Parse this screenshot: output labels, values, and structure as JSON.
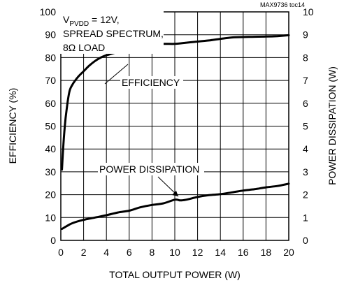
{
  "chart_data": {
    "type": "line",
    "ref_code": "MAX9736 toc14",
    "conditions": {
      "line1_prefix": "V",
      "line1_sub": "PVDD",
      "line1_suffix": " = 12V,",
      "line2": "SPREAD SPECTRUM,",
      "line3": "8Ω LOAD"
    },
    "xlabel": "TOTAL OUTPUT POWER (W)",
    "ylabel_left": "EFFICIENCY (%)",
    "ylabel_right": "POWER DISSIPATION (W)",
    "xlim": [
      0,
      20
    ],
    "ylim_left": [
      0,
      100
    ],
    "ylim_right": [
      0,
      10
    ],
    "x_ticks": [
      "0",
      "2",
      "4",
      "6",
      "8",
      "10",
      "12",
      "14",
      "16",
      "18",
      "20"
    ],
    "y_left_ticks": [
      "0",
      "10",
      "20",
      "30",
      "40",
      "50",
      "60",
      "70",
      "80",
      "90",
      "100"
    ],
    "y_right_ticks": [
      "0",
      "1",
      "2",
      "3",
      "4",
      "5",
      "6",
      "7",
      "8",
      "9",
      "10"
    ],
    "grid": true,
    "series": [
      {
        "name": "EFFICIENCY",
        "axis": "left",
        "x": [
          0.1,
          0.2,
          0.35,
          0.5,
          0.75,
          1,
          1.5,
          2,
          2.5,
          3,
          3.5,
          4,
          5,
          6,
          7,
          8,
          9,
          10,
          11,
          12,
          13,
          14,
          15,
          16,
          17,
          18,
          19,
          20
        ],
        "y": [
          31,
          40,
          50,
          57,
          65,
          68,
          71.5,
          74,
          76.5,
          78.5,
          80,
          81,
          82.5,
          84,
          84.5,
          85.5,
          86,
          86,
          86.5,
          87,
          87.5,
          88.2,
          88.8,
          89,
          89.1,
          89.2,
          89.4,
          89.8
        ]
      },
      {
        "name": "POWER DISSIPATION",
        "axis": "right",
        "x": [
          0.1,
          0.5,
          1,
          2,
          3,
          4,
          5,
          6,
          7,
          8,
          9,
          10,
          10.5,
          11,
          12,
          13,
          14,
          15,
          16,
          17,
          18,
          19,
          20
        ],
        "y": [
          0.5,
          0.62,
          0.75,
          0.9,
          1.0,
          1.1,
          1.22,
          1.3,
          1.45,
          1.55,
          1.62,
          1.78,
          1.75,
          1.78,
          1.9,
          1.98,
          2.02,
          2.1,
          2.18,
          2.24,
          2.32,
          2.38,
          2.48
        ]
      }
    ],
    "annotations": {
      "efficiency": "EFFICIENCY",
      "power_dissipation": "POWER DISSIPATION"
    }
  }
}
